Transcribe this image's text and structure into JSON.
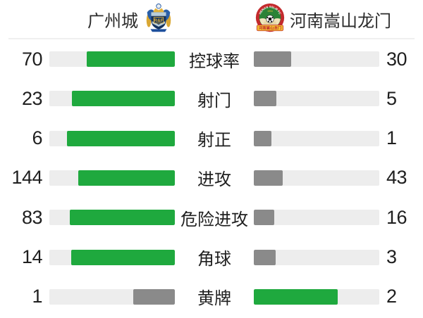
{
  "header": {
    "home_team": {
      "name": "广州城",
      "badge_text": "R&F"
    },
    "away_team": {
      "name": "河南嵩山龙门",
      "badge_ring_text": "HENAN SSLM FC",
      "badge_year": "1994",
      "badge_banner": "河南嵩山龙门"
    }
  },
  "colors": {
    "green": "#1fa93e",
    "gray": "#8a8a8a",
    "track": "#ededed",
    "text": "#212121"
  },
  "stats": [
    {
      "label": "控球率",
      "home": 70,
      "away": 30
    },
    {
      "label": "射门",
      "home": 23,
      "away": 5
    },
    {
      "label": "射正",
      "home": 6,
      "away": 1
    },
    {
      "label": "进攻",
      "home": 144,
      "away": 43
    },
    {
      "label": "危险进攻",
      "home": 83,
      "away": 16
    },
    {
      "label": "角球",
      "home": 14,
      "away": 3
    },
    {
      "label": "黄牌",
      "home": 1,
      "away": 2
    }
  ],
  "chart_data": {
    "type": "bar",
    "title": "广州城 vs 河南嵩山龙门",
    "categories": [
      "控球率",
      "射门",
      "射正",
      "进攻",
      "危险进攻",
      "角球",
      "黄牌"
    ],
    "series": [
      {
        "name": "广州城",
        "values": [
          70,
          23,
          6,
          144,
          83,
          14,
          1
        ]
      },
      {
        "name": "河南嵩山龙门",
        "values": [
          30,
          5,
          1,
          43,
          16,
          3,
          2
        ]
      }
    ],
    "layout": "horizontal paired bars anchored at center; fill fraction = value/(home+away); higher value colored green #1fa93e, lower value gray #8a8a8a, track #ededed; legend = team badges at top"
  }
}
